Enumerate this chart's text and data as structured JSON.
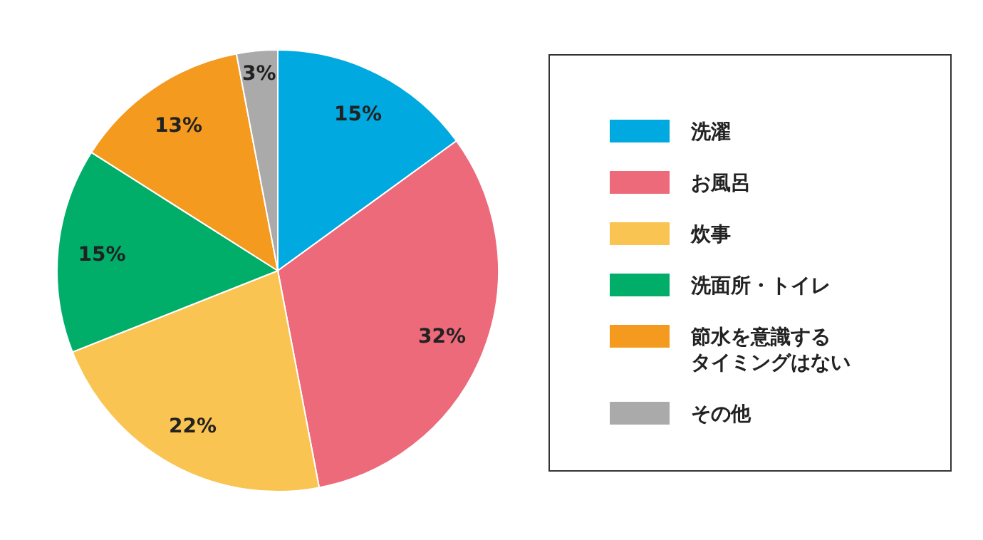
{
  "chart_data": {
    "type": "pie",
    "categories": [
      "洗濯",
      "お風呂",
      "炊事",
      "洗面所・トイレ",
      "節水を意識するタイミングはない",
      "その他"
    ],
    "values": [
      15,
      32,
      22,
      15,
      13,
      3
    ],
    "colors": [
      "#00a9e0",
      "#ec6a7a",
      "#f9c451",
      "#00ad69",
      "#f39a1f",
      "#aaaaaa"
    ],
    "value_labels": [
      "15%",
      "32%",
      "22%",
      "15%",
      "13%",
      "3%"
    ],
    "legend": "right"
  }
}
